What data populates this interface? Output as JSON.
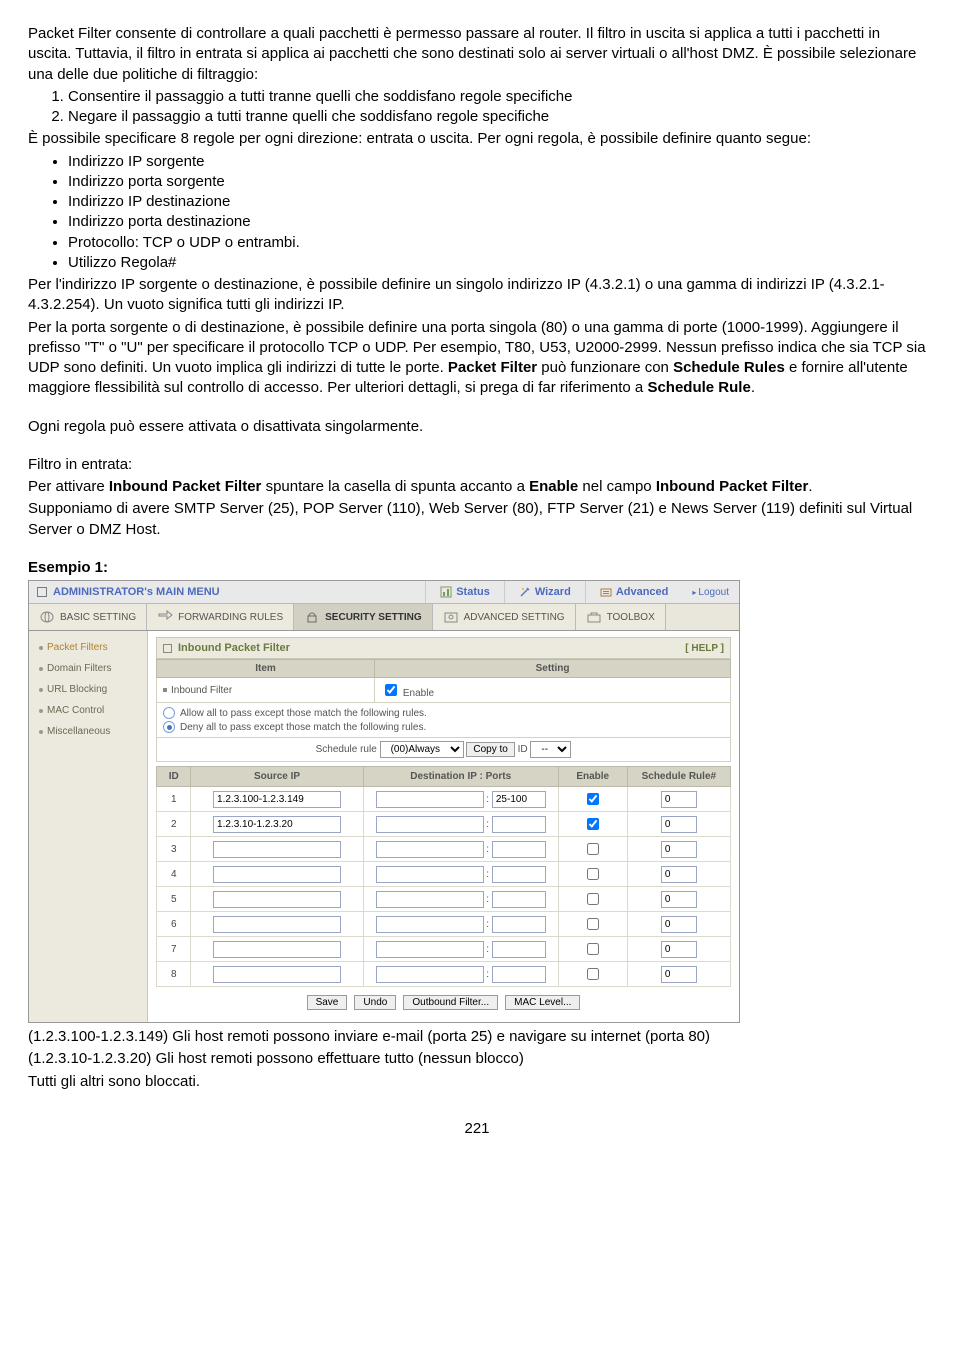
{
  "intro": {
    "p1": "Packet Filter consente di controllare a quali pacchetti è permesso passare al router. Il filtro in uscita si applica a tutti i pacchetti in uscita. Tuttavia, il filtro in entrata si applica ai pacchetti che sono destinati solo ai server virtuali o all'host DMZ. È possibile selezionare una delle due politiche di filtraggio:",
    "n1": "Consentire il passaggio a tutti tranne quelli che soddisfano regole specifiche",
    "n2": "Negare il passaggio a tutti tranne quelli che soddisfano regole specifiche",
    "p2": "È possibile specificare 8 regole per ogni direzione: entrata o uscita. Per ogni regola, è possibile definire quanto segue:",
    "b1": "Indirizzo IP sorgente",
    "b2": "Indirizzo porta sorgente",
    "b3": "Indirizzo IP destinazione",
    "b4": "Indirizzo porta destinazione",
    "b5": "Protocollo: TCP o UDP o entrambi.",
    "b6": "Utilizzo Regola#",
    "p3": "Per l'indirizzo IP sorgente o destinazione, è possibile definire un singolo indirizzo IP (4.3.2.1) o una gamma di indirizzi IP (4.3.2.1-4.3.2.254). Un vuoto significa tutti gli indirizzi IP.",
    "p4a": "Per la porta sorgente o di destinazione, è possibile definire una porta singola (80) o una gamma di porte (1000-1999). Aggiungere il prefisso \"T\" o \"U\" per specificare il protocollo TCP o UDP. Per esempio, T80, U53, U2000-2999. Nessun prefisso indica che sia TCP sia UDP sono definiti. Un vuoto implica gli indirizzi di tutte le porte. ",
    "p4b": "Packet Filter",
    "p4c": " può funzionare con ",
    "p4d": "Schedule Rules",
    "p4e": " e fornire all'utente maggiore flessibilità sul controllo di accesso. Per ulteriori dettagli, si prega di far riferimento a ",
    "p4f": "Schedule Rule",
    "p4g": ".",
    "p5": "Ogni regola può essere attivata o disattivata singolarmente.",
    "p6": "Filtro in entrata:",
    "p7a": "Per attivare ",
    "p7b": "Inbound Packet Filter",
    "p7c": " spuntare la casella di spunta accanto a ",
    "p7d": "Enable",
    "p7e": " nel campo ",
    "p7f": "Inbound Packet Filter",
    "p7g": ".",
    "p8": "Supponiamo di avere SMTP Server (25), POP Server (110), Web Server (80), FTP Server (21) e News Server (119) definiti sul Virtual Server o DMZ Host.",
    "ex": "Esempio 1:"
  },
  "ui": {
    "top": {
      "admin": "ADMINISTRATOR's MAIN MENU",
      "status": "Status",
      "wizard": "Wizard",
      "advanced": "Advanced",
      "logout": "Logout"
    },
    "tabs": {
      "basic": "BASIC SETTING",
      "fwd": "FORWARDING RULES",
      "sec": "SECURITY SETTING",
      "adv": "ADVANCED SETTING",
      "tool": "TOOLBOX"
    },
    "sidebar": {
      "pf": "Packet Filters",
      "df": "Domain Filters",
      "ub": "URL Blocking",
      "mc": "MAC Control",
      "misc": "Miscellaneous"
    },
    "section": {
      "title": "Inbound Packet Filter",
      "help": "[ HELP ]"
    },
    "cfg": {
      "item": "Item",
      "setting": "Setting",
      "inbound": "Inbound Filter",
      "enable": "Enable",
      "allow": "Allow all to pass except those match the following rules.",
      "deny": "Deny all to pass except those match the following rules.",
      "sched_lbl": "Schedule rule",
      "sched_sel": "(00)Always",
      "copy": "Copy to",
      "id_lbl": "ID",
      "id_sel": "--"
    },
    "rules": {
      "h_id": "ID",
      "h_src": "Source IP",
      "h_dst": "Destination IP : Ports",
      "h_en": "Enable",
      "h_sr": "Schedule Rule#",
      "rows": [
        {
          "id": "1",
          "src": "1.2.3.100-1.2.3.149",
          "dst": "",
          "ports": "25-100",
          "en": true,
          "sr": "0"
        },
        {
          "id": "2",
          "src": "1.2.3.10-1.2.3.20",
          "dst": "",
          "ports": "",
          "en": true,
          "sr": "0"
        },
        {
          "id": "3",
          "src": "",
          "dst": "",
          "ports": "",
          "en": false,
          "sr": "0"
        },
        {
          "id": "4",
          "src": "",
          "dst": "",
          "ports": "",
          "en": false,
          "sr": "0"
        },
        {
          "id": "5",
          "src": "",
          "dst": "",
          "ports": "",
          "en": false,
          "sr": "0"
        },
        {
          "id": "6",
          "src": "",
          "dst": "",
          "ports": "",
          "en": false,
          "sr": "0"
        },
        {
          "id": "7",
          "src": "",
          "dst": "",
          "ports": "",
          "en": false,
          "sr": "0"
        },
        {
          "id": "8",
          "src": "",
          "dst": "",
          "ports": "",
          "en": false,
          "sr": "0"
        }
      ]
    },
    "btns": {
      "save": "Save",
      "undo": "Undo",
      "out": "Outbound Filter...",
      "mac": "MAC Level..."
    }
  },
  "post": {
    "l1": "(1.2.3.100-1.2.3.149) Gli host remoti possono inviare e-mail (porta 25) e navigare su internet (porta 80)",
    "l2": "(1.2.3.10-1.2.3.20) Gli host remoti possono effettuare tutto (nessun blocco)",
    "l3": "Tutti gli altri sono bloccati."
  },
  "page": "221"
}
